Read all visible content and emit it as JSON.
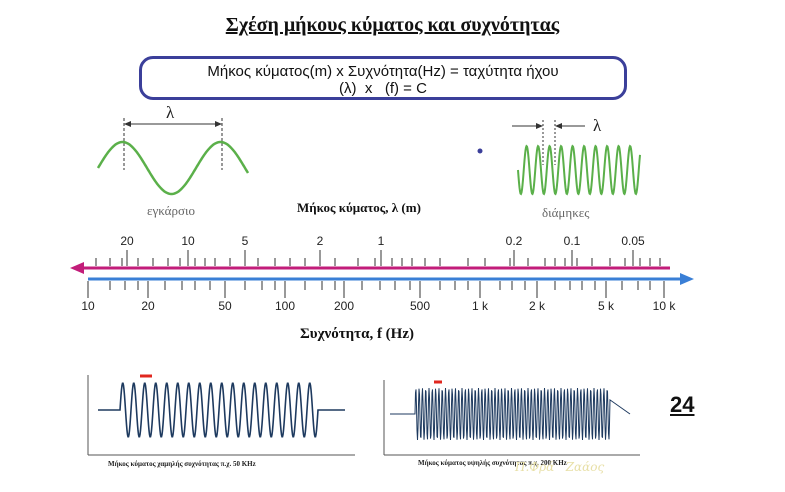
{
  "title": "Σχέση μήκους κύματος και συχνότητας",
  "formula": {
    "line1": "Μήκος κύματος(m) x Συχνότητα(Hz) = ταχύτητα ήχου",
    "line2": "(λ)  x   (f) = C"
  },
  "waves": {
    "lambda_symbol": "λ",
    "transverse_label": "εγκάρσιο",
    "longitudinal_label": "διάμηκες",
    "colors": {
      "wave": "#5bb04a",
      "dashed": "#333333"
    }
  },
  "scale": {
    "wavelength_title": "Μήκος κύματος, λ (m)",
    "frequency_title": "Συχνότητα, f (Hz)",
    "wavelength_ticks": [
      "20",
      "10",
      "5",
      "2",
      "1",
      "0.2",
      "0.1",
      "0.05"
    ],
    "frequency_ticks": [
      "10",
      "20",
      "50",
      "100",
      "200",
      "500",
      "1 k",
      "2 k",
      "5 k",
      "10 k"
    ],
    "colors": {
      "wavelength_arrow": "#c21d7a",
      "frequency_arrow": "#3a7fd6"
    }
  },
  "oscilloscopes": {
    "low": {
      "caption": "Μήκος κύματος χαμηλής συχνότητας π.χ. 50 KHz"
    },
    "high": {
      "caption": "Μήκος κύματος υψηλής συχνότητας π.χ. 200 KHz"
    },
    "colors": {
      "trace": "#1e3a5f",
      "marker": "#e0271f",
      "frame": "#555555"
    }
  },
  "page_number": "24",
  "watermark": "Π.Φρά   Ζαάος"
}
